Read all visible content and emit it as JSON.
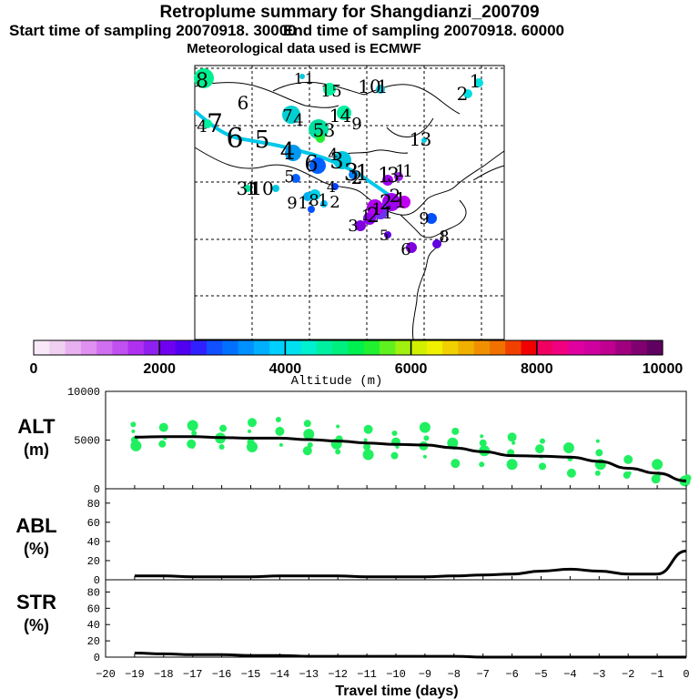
{
  "header": {
    "title": "Retroplume summary for Shangdianzi_200709",
    "start_label": "Start time of sampling 20070918. 30000",
    "end_label": "End time of sampling 20070918. 60000",
    "met_label": "Meteorological data used is ECMWF"
  },
  "map": {
    "labels": [
      "8",
      "6",
      "7",
      "4",
      "6",
      "5",
      "1",
      "1",
      "1",
      "5",
      "7",
      "4",
      "1",
      "4",
      "5",
      "3",
      "9",
      "10",
      "1",
      "2",
      "1",
      "1",
      "3",
      "4",
      "6",
      "3",
      "3",
      "1",
      "5",
      "2",
      "1",
      "3",
      "10",
      "9",
      "1",
      "8",
      "1",
      "2",
      "4",
      "1",
      "3",
      "1",
      "1",
      "2",
      "1",
      "2",
      "9",
      "3",
      "5",
      "6",
      "8",
      "1",
      "1",
      "1",
      "2",
      "4",
      "1"
    ],
    "points": [
      {
        "label": "8",
        "color": "#00f090"
      },
      {
        "label": "6",
        "color": "#00e0a0"
      },
      {
        "label": "7",
        "color": "#00d0d0"
      },
      {
        "label": "5",
        "color": "#00c8e0"
      },
      {
        "label": "4",
        "color": "#0060ff"
      },
      {
        "label": "3",
        "color": "#0098f0"
      },
      {
        "label": "2",
        "color": "#a000f0"
      },
      {
        "label": "1",
        "color": "#7030f0"
      },
      {
        "label": "9",
        "color": "#0050ff"
      },
      {
        "label": "6",
        "color": "#8000e0"
      },
      {
        "label": "8",
        "color": "#6000e0"
      }
    ]
  },
  "colorbar": {
    "title": "Altitude (m)",
    "ticks": [
      "0",
      "2000",
      "4000",
      "6000",
      "8000",
      "10000"
    ],
    "colors": [
      "#f8e8f8",
      "#f0d0f0",
      "#e8b0f0",
      "#e090f0",
      "#d070f0",
      "#c050f0",
      "#b030f0",
      "#9020f0",
      "#7000f0",
      "#5000f0",
      "#3020ff",
      "#1050ff",
      "#0070ff",
      "#0090ff",
      "#00b0ff",
      "#00d0ff",
      "#00e0f0",
      "#00f0d0",
      "#00f0a0",
      "#00f080",
      "#00f050",
      "#20f030",
      "#60f020",
      "#a0f010",
      "#d0f000",
      "#f0f000",
      "#f0d000",
      "#f0b000",
      "#f09000",
      "#f07000",
      "#f04000",
      "#f00000",
      "#f00060",
      "#f00080",
      "#e000a0",
      "#d000a0",
      "#c00090",
      "#a00080",
      "#800070",
      "#600060"
    ]
  },
  "panels": {
    "alt_label": "ALT",
    "alt_unit": "(m)",
    "abl_label": "ABL",
    "abl_unit": "(%)",
    "str_label": "STR",
    "str_unit": "(%)",
    "x_title": "Travel time (days)"
  },
  "chart_data": [
    {
      "type": "line",
      "panel": "ALT",
      "x": [
        -19,
        -18,
        -17,
        -16,
        -15,
        -14,
        -13,
        -12,
        -11,
        -10,
        -9,
        -8,
        -7,
        -6,
        -5,
        -4,
        -3,
        -2,
        -1,
        0
      ],
      "values": [
        5300,
        5350,
        5350,
        5250,
        5200,
        5200,
        5050,
        4900,
        4700,
        4550,
        4500,
        4200,
        3800,
        3400,
        3350,
        3250,
        2800,
        2100,
        1600,
        800
      ],
      "ylim": [
        0,
        10000
      ],
      "yticks": [
        "0",
        "5000",
        "10000"
      ],
      "scatter": [
        [
          -19,
          5900
        ],
        [
          -19,
          5000
        ],
        [
          -19,
          4400
        ],
        [
          -19,
          6600
        ],
        [
          -18,
          6300
        ],
        [
          -18,
          5200
        ],
        [
          -18,
          4600
        ],
        [
          -17,
          6500
        ],
        [
          -17,
          5700
        ],
        [
          -17,
          4600
        ],
        [
          -17,
          4300
        ],
        [
          -16,
          6200
        ],
        [
          -16,
          5200
        ],
        [
          -16,
          4300
        ],
        [
          -15,
          6800
        ],
        [
          -15,
          5900
        ],
        [
          -15,
          4800
        ],
        [
          -15,
          4300
        ],
        [
          -14,
          7100
        ],
        [
          -14,
          5900
        ],
        [
          -14,
          4500
        ],
        [
          -13,
          6700
        ],
        [
          -13,
          5600
        ],
        [
          -13,
          4500
        ],
        [
          -13,
          3900
        ],
        [
          -12,
          6400
        ],
        [
          -12,
          5100
        ],
        [
          -12,
          4600
        ],
        [
          -12,
          3800
        ],
        [
          -11,
          6100
        ],
        [
          -11,
          5000
        ],
        [
          -11,
          4300
        ],
        [
          -11,
          3500
        ],
        [
          -10,
          5700
        ],
        [
          -10,
          4800
        ],
        [
          -10,
          4300
        ],
        [
          -10,
          3400
        ],
        [
          -9,
          6300
        ],
        [
          -9,
          5200
        ],
        [
          -9,
          4400
        ],
        [
          -9,
          3300
        ],
        [
          -8,
          5900
        ],
        [
          -8,
          4700
        ],
        [
          -8,
          4300
        ],
        [
          -8,
          2600
        ],
        [
          -7,
          5400
        ],
        [
          -7,
          4700
        ],
        [
          -7,
          3900
        ],
        [
          -7,
          2500
        ],
        [
          -6,
          5300
        ],
        [
          -6,
          4700
        ],
        [
          -6,
          3700
        ],
        [
          -6,
          2500
        ],
        [
          -5,
          4900
        ],
        [
          -5,
          4100
        ],
        [
          -5,
          3300
        ],
        [
          -5,
          2300
        ],
        [
          -4,
          4200
        ],
        [
          -4,
          3100
        ],
        [
          -4,
          1600
        ],
        [
          -3,
          4900
        ],
        [
          -3,
          3700
        ],
        [
          -3,
          2500
        ],
        [
          -3,
          1600
        ],
        [
          -2,
          3000
        ],
        [
          -2,
          1600
        ],
        [
          -2,
          1400
        ],
        [
          -1,
          2500
        ],
        [
          -1,
          1500
        ],
        [
          -1,
          1000
        ],
        [
          -1,
          900
        ],
        [
          0,
          1100
        ],
        [
          0,
          800
        ]
      ]
    },
    {
      "type": "line",
      "panel": "ABL",
      "x": [
        -19,
        -18,
        -17,
        -16,
        -15,
        -14,
        -13,
        -12,
        -11,
        -10,
        -9,
        -8,
        -7,
        -6,
        -5,
        -4,
        -3,
        -2,
        -1,
        0
      ],
      "values": [
        4,
        4,
        3,
        3,
        3,
        4,
        4,
        4,
        3,
        3,
        3,
        4,
        5,
        6,
        9,
        11,
        9,
        6,
        6,
        30
      ],
      "ylim": [
        0,
        95
      ],
      "yticks": [
        "0",
        "20",
        "40",
        "60",
        "80"
      ]
    },
    {
      "type": "line",
      "panel": "STR",
      "x": [
        -19,
        -18,
        -17,
        -16,
        -15,
        -14,
        -13,
        -12,
        -11,
        -10,
        -9,
        -8,
        -7,
        -6,
        -5,
        -4,
        -3,
        -2,
        -1,
        0
      ],
      "values": [
        5,
        4,
        3,
        3,
        2,
        2,
        1,
        1,
        1,
        1,
        1,
        1,
        0,
        0,
        0,
        0,
        0,
        0,
        0,
        0
      ],
      "ylim": [
        0,
        95
      ],
      "yticks": [
        "0",
        "20",
        "40",
        "60",
        "80"
      ]
    }
  ],
  "x_axis": {
    "tick_labels": [
      "-20",
      "-19",
      "-18",
      "-17",
      "-16",
      "-15",
      "-14",
      "-13",
      "-12",
      "-11",
      "-10",
      "-9",
      "-8",
      "-7",
      "-6",
      "-5",
      "-4",
      "-3",
      "-2",
      "-1",
      "0"
    ]
  }
}
